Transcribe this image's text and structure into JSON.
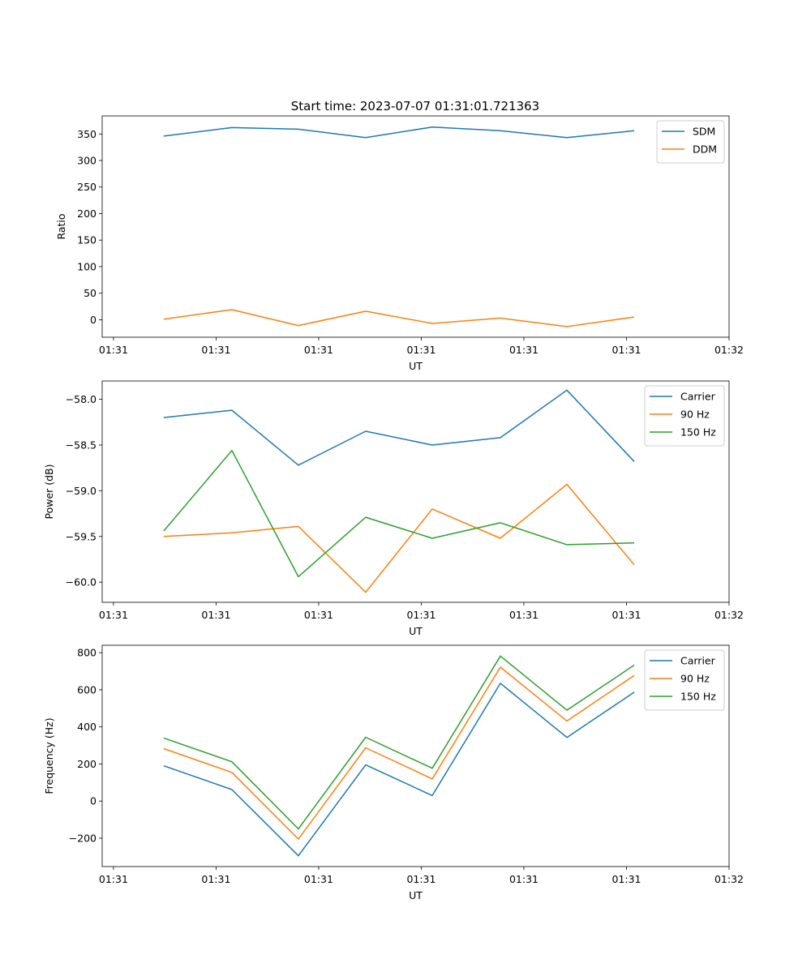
{
  "title": "Start time: 2023-07-07 01:31:01.721363",
  "chart_data": [
    {
      "type": "line",
      "title": "Start time: 2023-07-07 01:31:01.721363",
      "xlabel": "UT",
      "ylabel": "Ratio",
      "x_unit": "seconds after 01:31:00",
      "xlim": [
        -1.1,
        60
      ],
      "xticks": [
        0,
        10,
        20,
        30,
        40,
        50,
        60
      ],
      "xtick_labels": [
        "01:31",
        "01:31",
        "01:31",
        "01:31",
        "01:31",
        "01:31",
        "01:32"
      ],
      "ylim": [
        -33,
        384
      ],
      "yticks": [
        0,
        50,
        100,
        150,
        200,
        250,
        300,
        350
      ],
      "ytick_labels": [
        "0",
        "50",
        "100",
        "150",
        "200",
        "250",
        "300",
        "350"
      ],
      "legend": "top-right",
      "grid": false,
      "x": [
        4.9,
        11.54,
        18.02,
        24.58,
        31.07,
        37.71,
        44.19,
        50.75
      ],
      "series": [
        {
          "name": "SDM",
          "color": "#1f77b4",
          "values": [
            346,
            362,
            359,
            343,
            363,
            356,
            343,
            356
          ]
        },
        {
          "name": "DDM",
          "color": "#ff7f0e",
          "values": [
            1,
            19,
            -11,
            16,
            -7,
            3,
            -13,
            5
          ]
        }
      ]
    },
    {
      "type": "line",
      "title": "",
      "xlabel": "UT",
      "ylabel": "Power (dB)",
      "x_unit": "seconds after 01:31:00",
      "xlim": [
        -1.1,
        60
      ],
      "xticks": [
        0,
        10,
        20,
        30,
        40,
        50,
        60
      ],
      "xtick_labels": [
        "01:31",
        "01:31",
        "01:31",
        "01:31",
        "01:31",
        "01:31",
        "01:32"
      ],
      "ylim": [
        -60.22,
        -57.8
      ],
      "yticks": [
        -60.0,
        -59.5,
        -59.0,
        -58.5,
        -58.0
      ],
      "ytick_labels": [
        "−60.0",
        "−59.5",
        "−59.0",
        "−58.5",
        "−58.0"
      ],
      "legend": "top-right",
      "grid": false,
      "x": [
        4.9,
        11.54,
        18.02,
        24.58,
        31.07,
        37.71,
        44.19,
        50.75
      ],
      "series": [
        {
          "name": "Carrier",
          "color": "#1f77b4",
          "values": [
            -58.2,
            -58.12,
            -58.72,
            -58.35,
            -58.5,
            -58.42,
            -57.9,
            -58.68
          ]
        },
        {
          "name": "90 Hz",
          "color": "#ff7f0e",
          "values": [
            -59.5,
            -59.46,
            -59.39,
            -60.11,
            -59.2,
            -59.52,
            -58.93,
            -59.81
          ]
        },
        {
          "name": "150 Hz",
          "color": "#2ca02c",
          "values": [
            -59.44,
            -58.56,
            -59.94,
            -59.29,
            -59.52,
            -59.35,
            -59.59,
            -59.57
          ]
        }
      ]
    },
    {
      "type": "line",
      "title": "",
      "xlabel": "UT",
      "ylabel": "Frequency (Hz)",
      "x_unit": "seconds after 01:31:00",
      "xlim": [
        -1.1,
        60
      ],
      "xticks": [
        0,
        10,
        20,
        30,
        40,
        50,
        60
      ],
      "xtick_labels": [
        "01:31",
        "01:31",
        "01:31",
        "01:31",
        "01:31",
        "01:31",
        "01:32"
      ],
      "ylim": [
        -353,
        840
      ],
      "yticks": [
        -200,
        0,
        200,
        400,
        600,
        800
      ],
      "ytick_labels": [
        "−200",
        "0",
        "200",
        "400",
        "600",
        "800"
      ],
      "legend": "top-right",
      "grid": false,
      "x": [
        4.9,
        11.54,
        18.02,
        24.58,
        31.07,
        37.71,
        44.19,
        50.75
      ],
      "series": [
        {
          "name": "Carrier",
          "color": "#1f77b4",
          "values": [
            190,
            62,
            -295,
            195,
            30,
            635,
            343,
            587
          ]
        },
        {
          "name": "90 Hz",
          "color": "#ff7f0e",
          "values": [
            283,
            155,
            -205,
            287,
            120,
            722,
            432,
            677
          ]
        },
        {
          "name": "150 Hz",
          "color": "#2ca02c",
          "values": [
            340,
            212,
            -150,
            344,
            177,
            782,
            490,
            733
          ]
        }
      ]
    }
  ]
}
